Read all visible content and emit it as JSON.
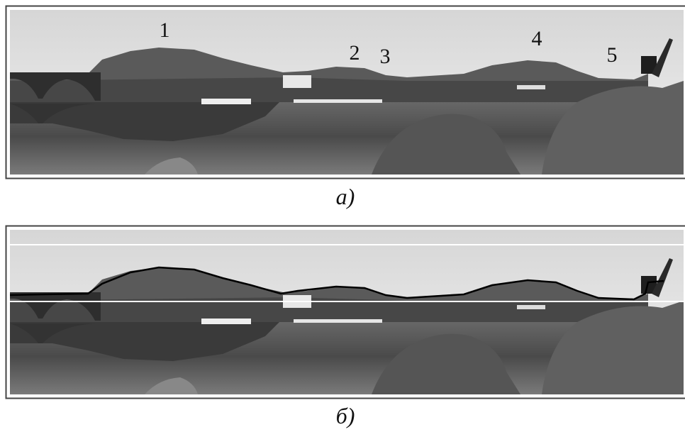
{
  "panels": [
    {
      "labels": [
        "1",
        "2",
        "3",
        "4",
        "5"
      ],
      "caption": "а)"
    },
    {
      "caption": "б)"
    }
  ]
}
